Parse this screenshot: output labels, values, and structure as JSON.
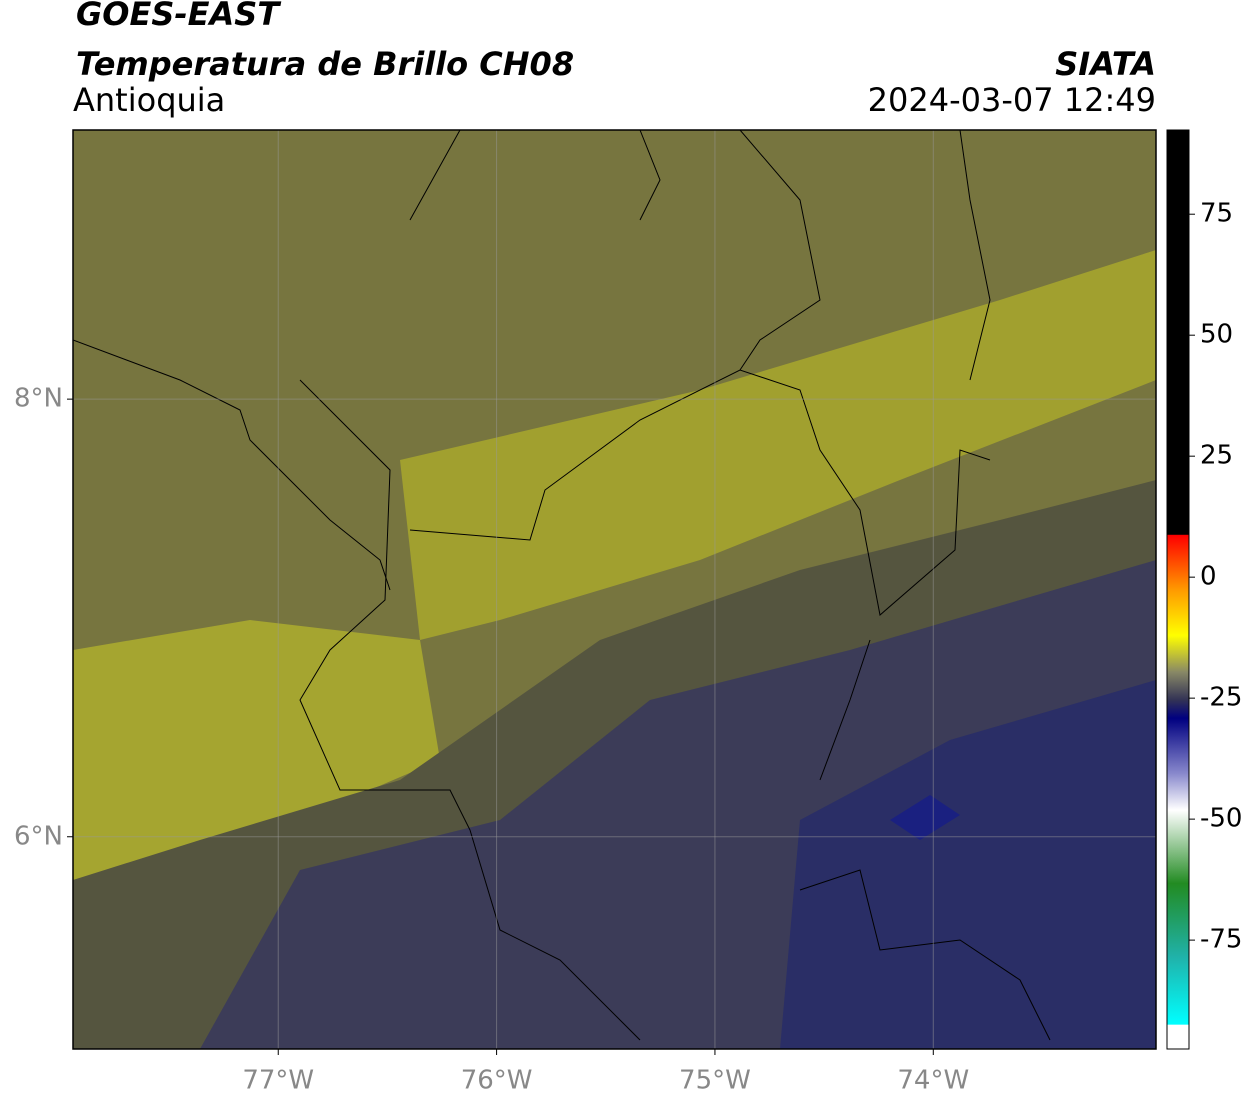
{
  "header": {
    "title": "GOES-EAST",
    "subtitle": "Temperatura de Brillo CH08",
    "region": "Antioquia",
    "source": "SIATA",
    "datetime": "2024-03-07 12:49"
  },
  "map": {
    "xlim": [
      -77.94,
      -72.98
    ],
    "ylim": [
      5.03,
      9.23
    ],
    "xticks": [
      {
        "value": -77,
        "label": "77°W"
      },
      {
        "value": -76,
        "label": "76°W"
      },
      {
        "value": -75,
        "label": "75°W"
      },
      {
        "value": -74,
        "label": "74°W"
      }
    ],
    "yticks": [
      {
        "value": 6,
        "label": "6°N"
      },
      {
        "value": 8,
        "label": "8°N"
      }
    ],
    "grid": true
  },
  "colorbar": {
    "lim": [
      -97.5,
      92.4
    ],
    "ticks": [
      75,
      50,
      25,
      0,
      -25,
      -50,
      -75
    ]
  }
}
